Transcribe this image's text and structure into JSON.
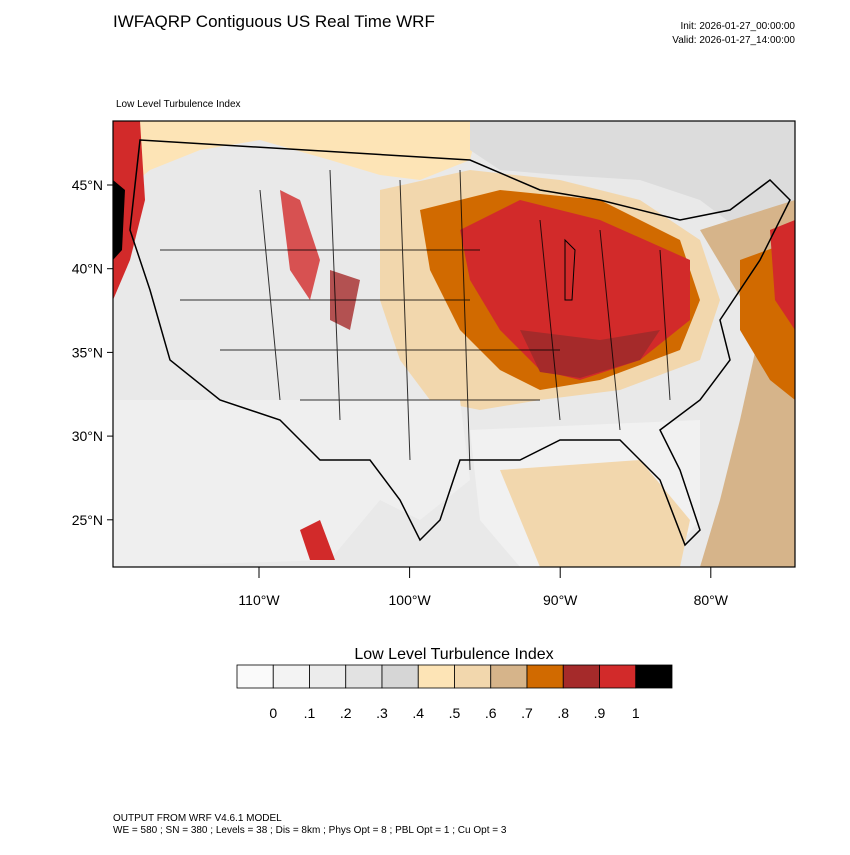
{
  "header": {
    "title": "IWFAQRP Contiguous US Real Time WRF",
    "init": "Init: 2026-01-27_00:00:00",
    "valid": "Valid: 2026-01-27_14:00:00"
  },
  "map": {
    "subtitle": "Low Level Turbulence Index",
    "lat_labels": [
      "45°N",
      "40°N",
      "35°N",
      "30°N",
      "25°N"
    ],
    "lon_labels": [
      "110°W",
      "100°W",
      "90°W",
      "80°W"
    ]
  },
  "colorbar": {
    "title": "Low Level Turbulence Index",
    "colors": [
      "#fafafa",
      "#f3f3f3",
      "#ececec",
      "#e2e2e2",
      "#d6d6d6",
      "#fde4b6",
      "#f2d7ad",
      "#d6b48a",
      "#d16a00",
      "#a52a2a",
      "#d22a2a",
      "#000000"
    ],
    "labels": [
      "0",
      ".1",
      ".2",
      ".3",
      ".4",
      ".5",
      ".6",
      ".7",
      ".8",
      ".9",
      "1"
    ]
  },
  "footer": {
    "line1": "OUTPUT FROM WRF V4.6.1 MODEL",
    "line2": "WE = 580 ; SN = 380 ; Levels = 38 ; Dis = 8km ; Phys Opt = 8 ; PBL Opt = 1 ; Cu Opt = 3"
  }
}
